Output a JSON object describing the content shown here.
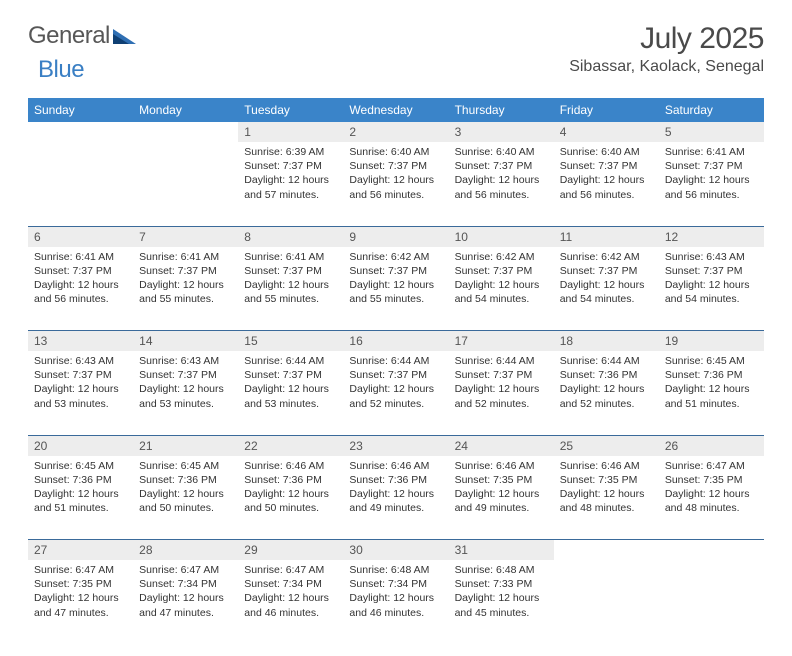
{
  "brand": {
    "part1": "General",
    "part2": "Blue"
  },
  "title": "July 2025",
  "location": "Sibassar, Kaolack, Senegal",
  "colors": {
    "header_bg": "#3a84c9",
    "header_fg": "#ffffff",
    "daynum_bg": "#ededed",
    "rule": "#3a6a9a",
    "brand_gray": "#575757",
    "brand_blue": "#3a7fc4"
  },
  "day_headers": [
    "Sunday",
    "Monday",
    "Tuesday",
    "Wednesday",
    "Thursday",
    "Friday",
    "Saturday"
  ],
  "weeks": [
    [
      null,
      null,
      {
        "n": "1",
        "sr": "Sunrise: 6:39 AM",
        "ss": "Sunset: 7:37 PM",
        "d1": "Daylight: 12 hours",
        "d2": "and 57 minutes."
      },
      {
        "n": "2",
        "sr": "Sunrise: 6:40 AM",
        "ss": "Sunset: 7:37 PM",
        "d1": "Daylight: 12 hours",
        "d2": "and 56 minutes."
      },
      {
        "n": "3",
        "sr": "Sunrise: 6:40 AM",
        "ss": "Sunset: 7:37 PM",
        "d1": "Daylight: 12 hours",
        "d2": "and 56 minutes."
      },
      {
        "n": "4",
        "sr": "Sunrise: 6:40 AM",
        "ss": "Sunset: 7:37 PM",
        "d1": "Daylight: 12 hours",
        "d2": "and 56 minutes."
      },
      {
        "n": "5",
        "sr": "Sunrise: 6:41 AM",
        "ss": "Sunset: 7:37 PM",
        "d1": "Daylight: 12 hours",
        "d2": "and 56 minutes."
      }
    ],
    [
      {
        "n": "6",
        "sr": "Sunrise: 6:41 AM",
        "ss": "Sunset: 7:37 PM",
        "d1": "Daylight: 12 hours",
        "d2": "and 56 minutes."
      },
      {
        "n": "7",
        "sr": "Sunrise: 6:41 AM",
        "ss": "Sunset: 7:37 PM",
        "d1": "Daylight: 12 hours",
        "d2": "and 55 minutes."
      },
      {
        "n": "8",
        "sr": "Sunrise: 6:41 AM",
        "ss": "Sunset: 7:37 PM",
        "d1": "Daylight: 12 hours",
        "d2": "and 55 minutes."
      },
      {
        "n": "9",
        "sr": "Sunrise: 6:42 AM",
        "ss": "Sunset: 7:37 PM",
        "d1": "Daylight: 12 hours",
        "d2": "and 55 minutes."
      },
      {
        "n": "10",
        "sr": "Sunrise: 6:42 AM",
        "ss": "Sunset: 7:37 PM",
        "d1": "Daylight: 12 hours",
        "d2": "and 54 minutes."
      },
      {
        "n": "11",
        "sr": "Sunrise: 6:42 AM",
        "ss": "Sunset: 7:37 PM",
        "d1": "Daylight: 12 hours",
        "d2": "and 54 minutes."
      },
      {
        "n": "12",
        "sr": "Sunrise: 6:43 AM",
        "ss": "Sunset: 7:37 PM",
        "d1": "Daylight: 12 hours",
        "d2": "and 54 minutes."
      }
    ],
    [
      {
        "n": "13",
        "sr": "Sunrise: 6:43 AM",
        "ss": "Sunset: 7:37 PM",
        "d1": "Daylight: 12 hours",
        "d2": "and 53 minutes."
      },
      {
        "n": "14",
        "sr": "Sunrise: 6:43 AM",
        "ss": "Sunset: 7:37 PM",
        "d1": "Daylight: 12 hours",
        "d2": "and 53 minutes."
      },
      {
        "n": "15",
        "sr": "Sunrise: 6:44 AM",
        "ss": "Sunset: 7:37 PM",
        "d1": "Daylight: 12 hours",
        "d2": "and 53 minutes."
      },
      {
        "n": "16",
        "sr": "Sunrise: 6:44 AM",
        "ss": "Sunset: 7:37 PM",
        "d1": "Daylight: 12 hours",
        "d2": "and 52 minutes."
      },
      {
        "n": "17",
        "sr": "Sunrise: 6:44 AM",
        "ss": "Sunset: 7:37 PM",
        "d1": "Daylight: 12 hours",
        "d2": "and 52 minutes."
      },
      {
        "n": "18",
        "sr": "Sunrise: 6:44 AM",
        "ss": "Sunset: 7:36 PM",
        "d1": "Daylight: 12 hours",
        "d2": "and 52 minutes."
      },
      {
        "n": "19",
        "sr": "Sunrise: 6:45 AM",
        "ss": "Sunset: 7:36 PM",
        "d1": "Daylight: 12 hours",
        "d2": "and 51 minutes."
      }
    ],
    [
      {
        "n": "20",
        "sr": "Sunrise: 6:45 AM",
        "ss": "Sunset: 7:36 PM",
        "d1": "Daylight: 12 hours",
        "d2": "and 51 minutes."
      },
      {
        "n": "21",
        "sr": "Sunrise: 6:45 AM",
        "ss": "Sunset: 7:36 PM",
        "d1": "Daylight: 12 hours",
        "d2": "and 50 minutes."
      },
      {
        "n": "22",
        "sr": "Sunrise: 6:46 AM",
        "ss": "Sunset: 7:36 PM",
        "d1": "Daylight: 12 hours",
        "d2": "and 50 minutes."
      },
      {
        "n": "23",
        "sr": "Sunrise: 6:46 AM",
        "ss": "Sunset: 7:36 PM",
        "d1": "Daylight: 12 hours",
        "d2": "and 49 minutes."
      },
      {
        "n": "24",
        "sr": "Sunrise: 6:46 AM",
        "ss": "Sunset: 7:35 PM",
        "d1": "Daylight: 12 hours",
        "d2": "and 49 minutes."
      },
      {
        "n": "25",
        "sr": "Sunrise: 6:46 AM",
        "ss": "Sunset: 7:35 PM",
        "d1": "Daylight: 12 hours",
        "d2": "and 48 minutes."
      },
      {
        "n": "26",
        "sr": "Sunrise: 6:47 AM",
        "ss": "Sunset: 7:35 PM",
        "d1": "Daylight: 12 hours",
        "d2": "and 48 minutes."
      }
    ],
    [
      {
        "n": "27",
        "sr": "Sunrise: 6:47 AM",
        "ss": "Sunset: 7:35 PM",
        "d1": "Daylight: 12 hours",
        "d2": "and 47 minutes."
      },
      {
        "n": "28",
        "sr": "Sunrise: 6:47 AM",
        "ss": "Sunset: 7:34 PM",
        "d1": "Daylight: 12 hours",
        "d2": "and 47 minutes."
      },
      {
        "n": "29",
        "sr": "Sunrise: 6:47 AM",
        "ss": "Sunset: 7:34 PM",
        "d1": "Daylight: 12 hours",
        "d2": "and 46 minutes."
      },
      {
        "n": "30",
        "sr": "Sunrise: 6:48 AM",
        "ss": "Sunset: 7:34 PM",
        "d1": "Daylight: 12 hours",
        "d2": "and 46 minutes."
      },
      {
        "n": "31",
        "sr": "Sunrise: 6:48 AM",
        "ss": "Sunset: 7:33 PM",
        "d1": "Daylight: 12 hours",
        "d2": "and 45 minutes."
      },
      null,
      null
    ]
  ]
}
